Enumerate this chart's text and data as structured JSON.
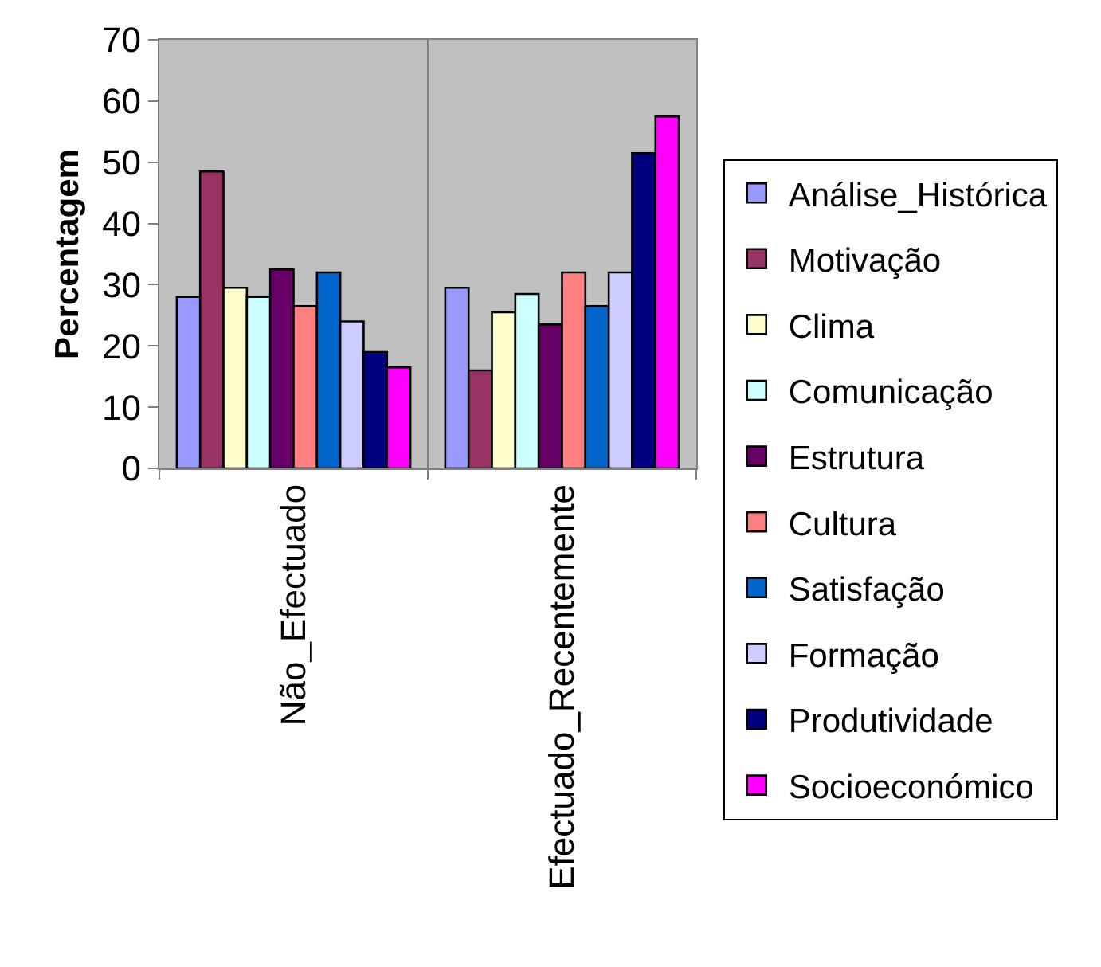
{
  "chart_data": {
    "type": "bar",
    "ylabel": "Percentagem",
    "categories": [
      "Não_Efectuado",
      "Efectuado_Recentemente"
    ],
    "series": [
      {
        "name": "Análise_Histórica",
        "color": "#9999ff",
        "values": [
          28,
          29.5
        ]
      },
      {
        "name": "Motivação",
        "color": "#993366",
        "values": [
          48.5,
          16
        ]
      },
      {
        "name": "Clima",
        "color": "#ffffcc",
        "values": [
          29.5,
          25.5
        ]
      },
      {
        "name": "Comunicação",
        "color": "#ccffff",
        "values": [
          28,
          28.5
        ]
      },
      {
        "name": "Estrutura",
        "color": "#660066",
        "values": [
          32.5,
          23.5
        ]
      },
      {
        "name": "Cultura",
        "color": "#ff8080",
        "values": [
          26.5,
          32
        ]
      },
      {
        "name": "Satisfação",
        "color": "#0066cc",
        "values": [
          32,
          26.5
        ]
      },
      {
        "name": "Formação",
        "color": "#ccccff",
        "values": [
          24,
          32
        ]
      },
      {
        "name": "Produtividade",
        "color": "#000080",
        "values": [
          19,
          51.5
        ]
      },
      {
        "name": "Socioeconómico",
        "color": "#ff00ff",
        "values": [
          16.5,
          57.5
        ]
      }
    ],
    "ylim": [
      0,
      70
    ],
    "yticks": [
      0,
      10,
      20,
      30,
      40,
      50,
      60,
      70
    ],
    "grid": "x",
    "legend": "right"
  }
}
